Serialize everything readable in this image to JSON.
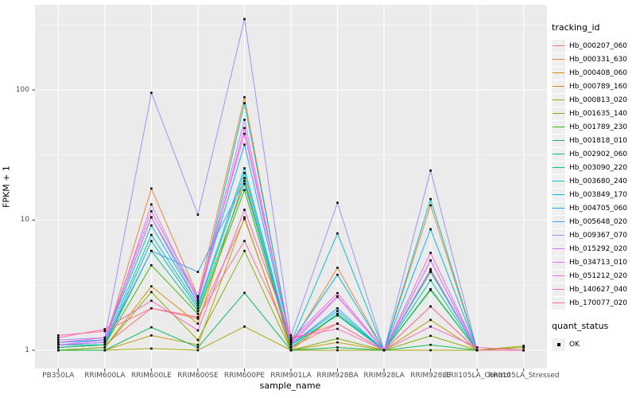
{
  "figure": {
    "background": "#FFFFFF",
    "panel_background": "#EBEBEB",
    "grid_color": "#FFFFFF",
    "tick_color": "#333333",
    "tick_label_color": "#4D4D4D",
    "point_color": "#000000"
  },
  "chart_data": {
    "type": "line",
    "title": "",
    "xlabel": "sample_name",
    "ylabel": "FPKM + 1",
    "y_scale": "log10",
    "y_ticks": [
      "1",
      "10",
      "100"
    ],
    "y_tick_values": [
      1,
      10,
      100
    ],
    "y_minor_tick_values": [
      3.162,
      31.62,
      316.2
    ],
    "ylim": [
      0.9,
      450
    ],
    "grid": "on",
    "legend_position": "right",
    "x_categories": [
      "PB350LA",
      "RRIM600LA",
      "RRIM600LE",
      "RRIM600SE",
      "RRIM600PE",
      "RRIM901LA",
      "RRIM928BA",
      "RRIM928LA",
      "RRIM928LE",
      "RRII105LA_Control",
      "RRII105LA_Stressed"
    ],
    "legend_title": "tracking_id",
    "legend2_title": "quant_status",
    "legend2_items": [
      {
        "label": "OK",
        "marker": "black-square"
      }
    ],
    "series": [
      {
        "name": "Hb_000207_060",
        "color": "#F8766D",
        "values": [
          1.05,
          1.1,
          2.1,
          1.75,
          10.2,
          1.05,
          1.6,
          1.0,
          2.17,
          1.0,
          1.0
        ]
      },
      {
        "name": "Hb_000331_630",
        "color": "#EA8331",
        "values": [
          1.1,
          1.15,
          17.5,
          2.6,
          88,
          1.1,
          4.3,
          1.0,
          13.0,
          1.0,
          1.0
        ]
      },
      {
        "name": "Hb_000408_060",
        "color": "#D89000",
        "values": [
          1.0,
          1.05,
          3.1,
          1.6,
          21,
          1.0,
          1.9,
          1.0,
          4.1,
          1.0,
          1.05
        ]
      },
      {
        "name": "Hb_000789_160",
        "color": "#C09B00",
        "values": [
          1.0,
          1.0,
          1.3,
          1.1,
          10.5,
          1.0,
          1.15,
          1.0,
          1.71,
          1.0,
          1.0
        ]
      },
      {
        "name": "Hb_000813_020",
        "color": "#A3A500",
        "values": [
          1.0,
          1.0,
          1.03,
          1.0,
          1.52,
          1.0,
          1.0,
          1.0,
          1.0,
          1.0,
          1.08
        ]
      },
      {
        "name": "Hb_001635_140",
        "color": "#7CAE00",
        "values": [
          1.0,
          1.05,
          2.8,
          1.2,
          5.8,
          1.0,
          1.23,
          1.0,
          1.29,
          1.0,
          1.05
        ]
      },
      {
        "name": "Hb_001789_230",
        "color": "#39B600",
        "values": [
          1.05,
          1.1,
          4.5,
          1.9,
          17,
          1.05,
          1.9,
          1.0,
          2.95,
          1.0,
          1.0
        ]
      },
      {
        "name": "Hb_001818_010",
        "color": "#00BB4E",
        "values": [
          1.0,
          1.0,
          1.5,
          1.05,
          2.76,
          1.0,
          1.05,
          1.0,
          1.1,
          1.0,
          1.0
        ]
      },
      {
        "name": "Hb_002902_060",
        "color": "#00BF7D",
        "values": [
          1.1,
          1.1,
          5.8,
          2.0,
          19,
          1.1,
          1.85,
          1.0,
          2.9,
          1.0,
          1.0
        ]
      },
      {
        "name": "Hb_003090_220",
        "color": "#00C1A3",
        "values": [
          1.05,
          1.1,
          6.9,
          2.1,
          23,
          1.05,
          1.9,
          1.0,
          3.45,
          1.0,
          1.0
        ]
      },
      {
        "name": "Hb_003680_240",
        "color": "#00BFC4",
        "values": [
          1.15,
          1.2,
          9.1,
          2.3,
          79,
          1.15,
          7.9,
          1.0,
          14.5,
          1.0,
          1.0
        ]
      },
      {
        "name": "Hb_003849_170",
        "color": "#00BAE0",
        "values": [
          1.1,
          1.15,
          7.7,
          2.2,
          25,
          1.1,
          2.0,
          1.0,
          4.0,
          1.0,
          1.0
        ]
      },
      {
        "name": "Hb_004705_060",
        "color": "#00B0F6",
        "values": [
          1.15,
          1.2,
          10.5,
          2.5,
          38,
          1.15,
          3.8,
          1.0,
          8.5,
          1.0,
          1.0
        ]
      },
      {
        "name": "Hb_005648_020",
        "color": "#35A2FF",
        "values": [
          1.1,
          1.15,
          5.8,
          4.0,
          20,
          1.1,
          2.1,
          1.0,
          4.9,
          1.0,
          1.0
        ]
      },
      {
        "name": "Hb_009367_070",
        "color": "#9590FF",
        "values": [
          1.2,
          1.25,
          95,
          11.0,
          350,
          1.3,
          13.6,
          1.0,
          24.0,
          1.0,
          1.0
        ]
      },
      {
        "name": "Hb_015292_020",
        "color": "#C77CFF",
        "values": [
          1.1,
          1.15,
          13.2,
          2.4,
          59,
          1.1,
          2.57,
          1.0,
          4.2,
          1.0,
          1.0
        ]
      },
      {
        "name": "Hb_034713_010",
        "color": "#E76BF3",
        "values": [
          1.1,
          1.2,
          10.5,
          2.3,
          51,
          1.15,
          2.6,
          1.0,
          4.9,
          1.0,
          1.0
        ]
      },
      {
        "name": "Hb_051212_020",
        "color": "#FA62DB",
        "values": [
          1.15,
          1.25,
          11.7,
          2.6,
          46,
          1.2,
          2.75,
          1.0,
          5.6,
          1.0,
          1.0
        ]
      },
      {
        "name": "Hb_140627_040",
        "color": "#FF62BC",
        "values": [
          1.25,
          1.45,
          2.4,
          1.42,
          12,
          1.25,
          1.46,
          1.0,
          1.52,
          1.05,
          1.0
        ]
      },
      {
        "name": "Hb_170077_020",
        "color": "#FF6A98",
        "values": [
          1.3,
          1.4,
          2.1,
          1.8,
          6.9,
          1.2,
          1.6,
          1.0,
          2.17,
          1.0,
          1.0
        ]
      }
    ]
  }
}
